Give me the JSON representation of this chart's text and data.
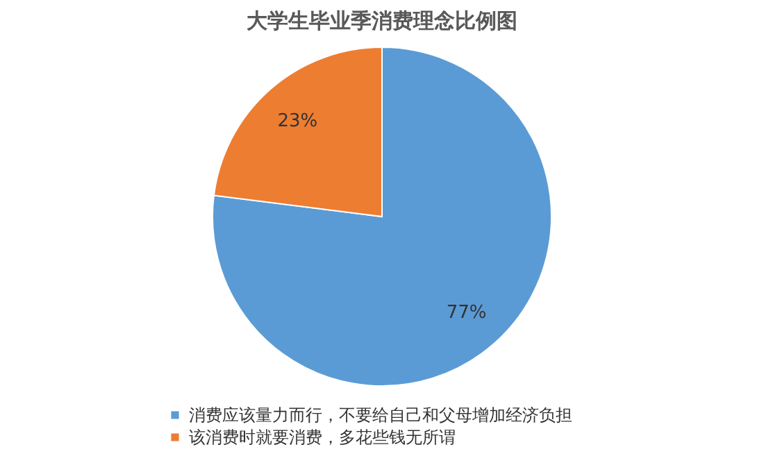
{
  "chart_data": {
    "type": "pie",
    "title": "大学生毕业季消费理念比例图",
    "categories": [
      "消费应该量力而行，不要给自己和父母增加经济负担",
      "该消费时就要消费，多花些钱无所谓"
    ],
    "values": [
      77,
      23
    ],
    "colors": [
      "#5b9bd5",
      "#ed7d31"
    ],
    "value_labels": [
      "77%",
      "23%"
    ],
    "legend": "bottom"
  }
}
